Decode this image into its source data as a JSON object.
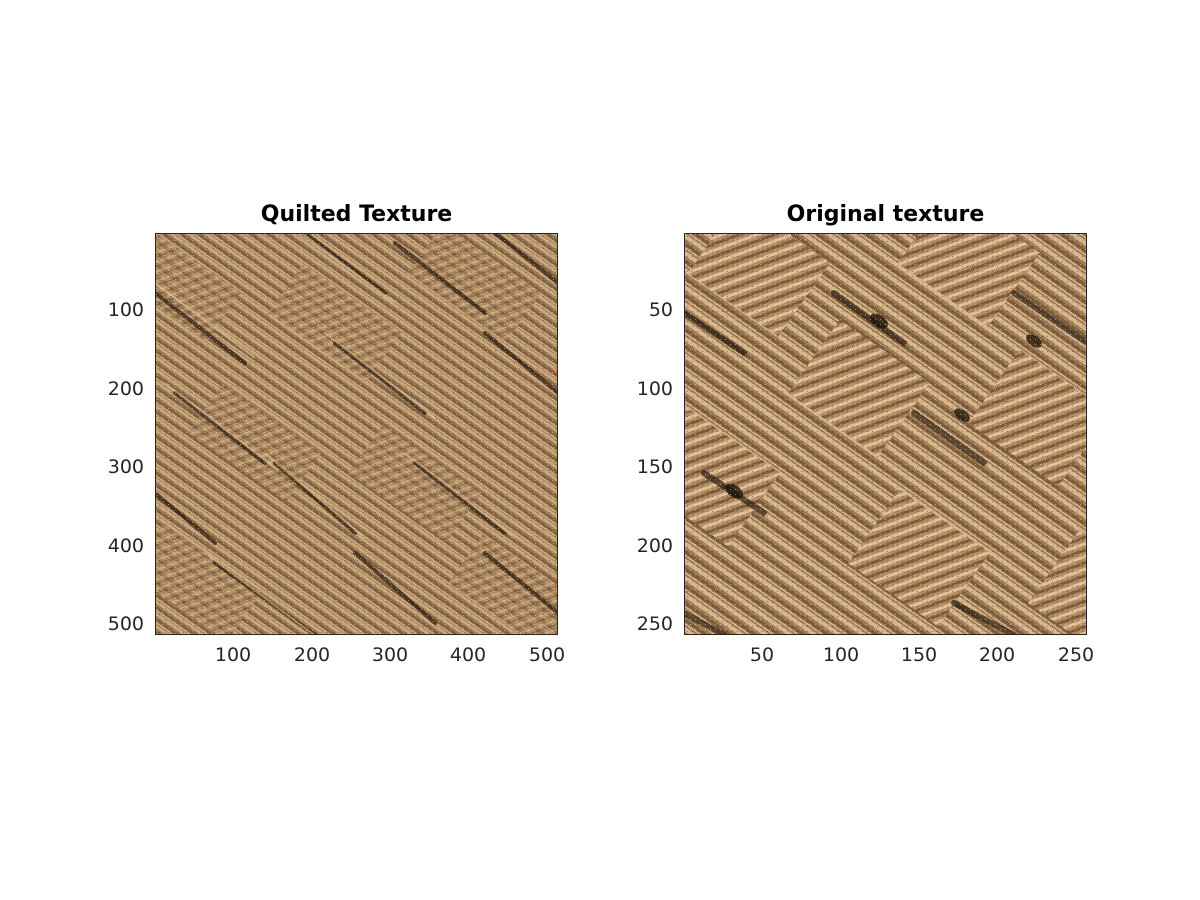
{
  "figure": {
    "panels": [
      {
        "title": "Quilted Texture",
        "image_icon": "quilted-rope-weave-texture",
        "yticks": [
          "100",
          "200",
          "300",
          "400",
          "500"
        ],
        "xticks": [
          "100",
          "200",
          "300",
          "400",
          "500"
        ]
      },
      {
        "title": "Original texture",
        "image_icon": "rope-weave-texture",
        "yticks": [
          "50",
          "100",
          "150",
          "200",
          "250"
        ],
        "xticks": [
          "50",
          "100",
          "150",
          "200",
          "250"
        ]
      }
    ]
  },
  "colors": {
    "texture_base": "#9c7a55",
    "texture_light": "#d8b68c",
    "texture_dark": "#3a2a1a",
    "axis": "#262626"
  }
}
